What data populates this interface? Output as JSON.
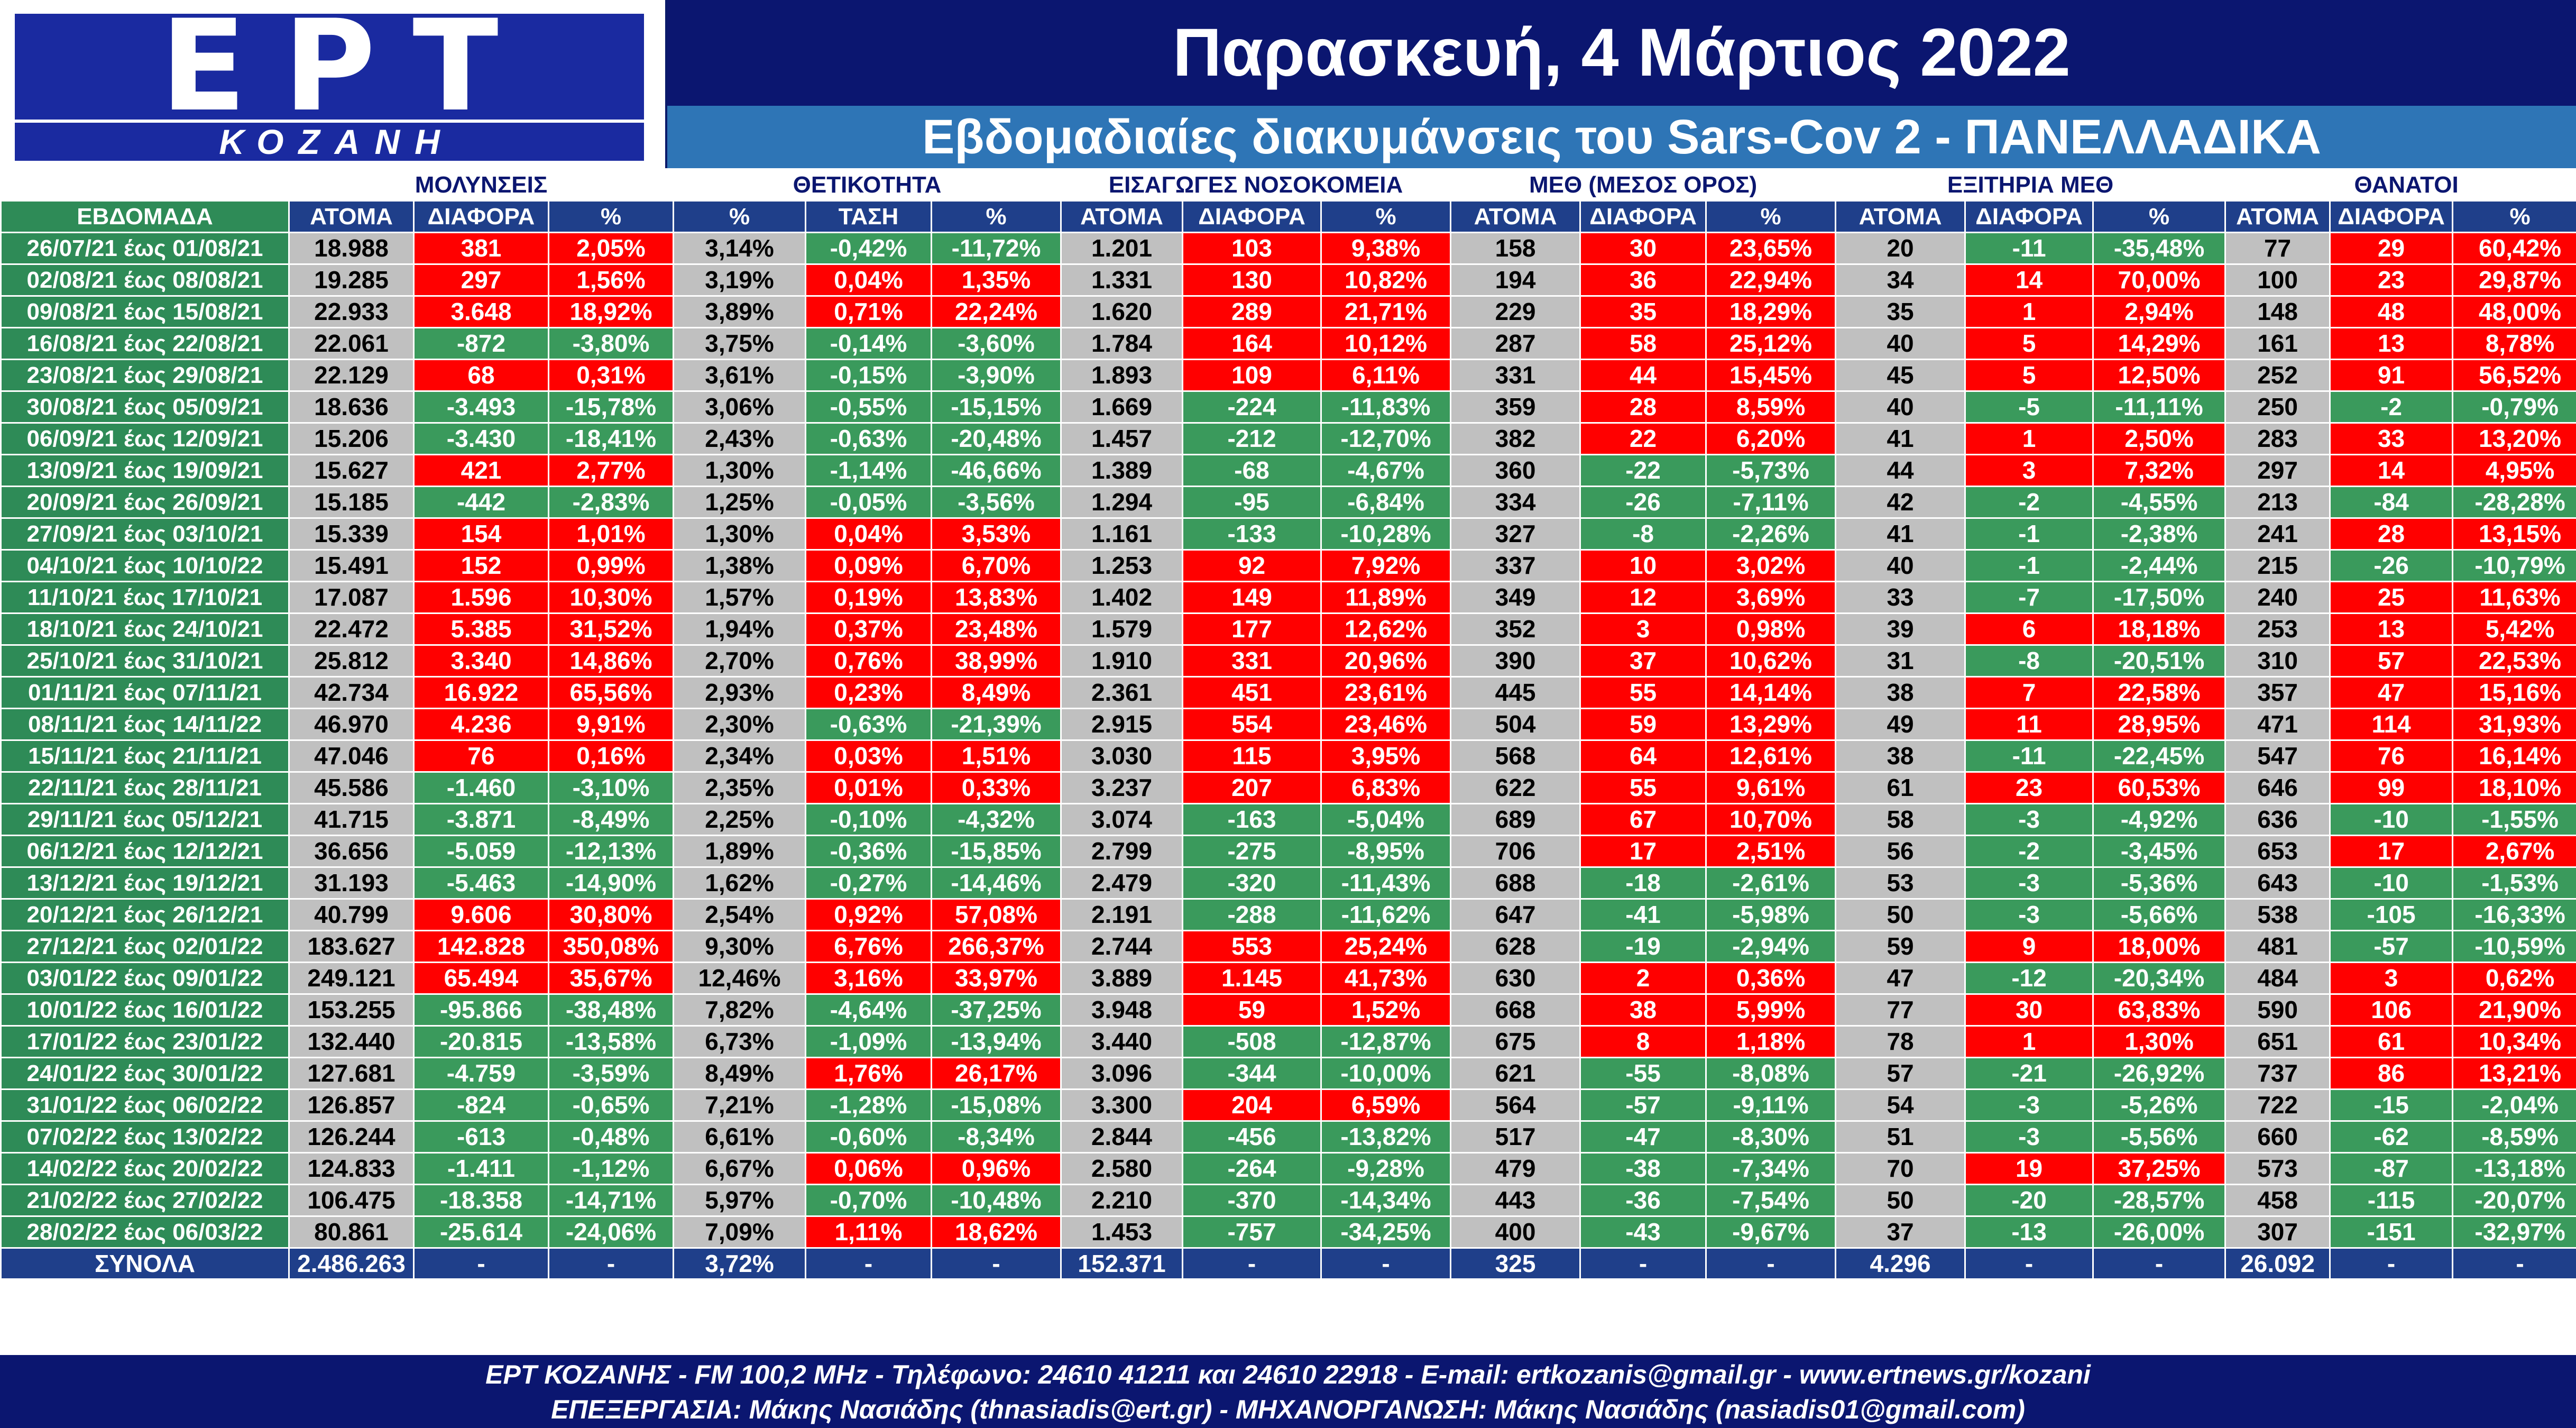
{
  "header": {
    "logo_main": "ΕΡΤ",
    "logo_city": "ΚΟΖΑΝΗ",
    "date_title": "Παρασκευή, 4 Μάρτιος 2022",
    "subtitle": "Εβδομαδιαίες διακυμάνσεις του Sars-Cov 2 - ΠΑΝΕΛΛΑΔΙΚΑ"
  },
  "colors": {
    "increase": "#ff0000",
    "decrease": "#3a9a5c",
    "neutral": "#c0c0c0",
    "header_navy": "#0b1670",
    "header_blue": "#2e75b6"
  },
  "chart_data": {
    "type": "table",
    "groups": [
      {
        "label": "ΜΟΛΥΝΣΕΙΣ",
        "columns": [
          "ΑΤΟΜΑ",
          "ΔΙΑΦΟΡΑ",
          "%"
        ]
      },
      {
        "label": "ΘΕΤΙΚΟΤΗΤΑ",
        "columns": [
          "%",
          "ΤΑΣΗ",
          "%"
        ]
      },
      {
        "label": "ΕΙΣΑΓΩΓΕΣ ΝΟΣΟΚΟΜΕΙΑ",
        "columns": [
          "ΑΤΟΜΑ",
          "ΔΙΑΦΟΡΑ",
          "%"
        ]
      },
      {
        "label": "ΜΕΘ (ΜΕΣΟΣ ΟΡΟΣ)",
        "columns": [
          "ΑΤΟΜΑ",
          "ΔΙΑΦΟΡΑ",
          "%"
        ]
      },
      {
        "label": "ΕΞΙΤΗΡΙΑ ΜΕΘ",
        "columns": [
          "ΑΤΟΜΑ",
          "ΔΙΑΦΟΡΑ",
          "%"
        ]
      },
      {
        "label": "ΘΑΝΑΤΟΙ",
        "columns": [
          "ΑΤΟΜΑ",
          "ΔΙΑΦΟΡΑ",
          "%"
        ]
      }
    ],
    "week_header": "ΕΒΔΟΜΑΔΑ",
    "rows": [
      [
        "26/07/21 έως 01/08/21",
        "18.988",
        "381",
        "2,05%",
        "3,14%",
        "-0,42%",
        "-11,72%",
        "1.201",
        "103",
        "9,38%",
        "158",
        "30",
        "23,65%",
        "20",
        "-11",
        "-35,48%",
        "77",
        "29",
        "60,42%"
      ],
      [
        "02/08/21 έως 08/08/21",
        "19.285",
        "297",
        "1,56%",
        "3,19%",
        "0,04%",
        "1,35%",
        "1.331",
        "130",
        "10,82%",
        "194",
        "36",
        "22,94%",
        "34",
        "14",
        "70,00%",
        "100",
        "23",
        "29,87%"
      ],
      [
        "09/08/21 έως 15/08/21",
        "22.933",
        "3.648",
        "18,92%",
        "3,89%",
        "0,71%",
        "22,24%",
        "1.620",
        "289",
        "21,71%",
        "229",
        "35",
        "18,29%",
        "35",
        "1",
        "2,94%",
        "148",
        "48",
        "48,00%"
      ],
      [
        "16/08/21 έως 22/08/21",
        "22.061",
        "-872",
        "-3,80%",
        "3,75%",
        "-0,14%",
        "-3,60%",
        "1.784",
        "164",
        "10,12%",
        "287",
        "58",
        "25,12%",
        "40",
        "5",
        "14,29%",
        "161",
        "13",
        "8,78%"
      ],
      [
        "23/08/21 έως 29/08/21",
        "22.129",
        "68",
        "0,31%",
        "3,61%",
        "-0,15%",
        "-3,90%",
        "1.893",
        "109",
        "6,11%",
        "331",
        "44",
        "15,45%",
        "45",
        "5",
        "12,50%",
        "252",
        "91",
        "56,52%"
      ],
      [
        "30/08/21 έως 05/09/21",
        "18.636",
        "-3.493",
        "-15,78%",
        "3,06%",
        "-0,55%",
        "-15,15%",
        "1.669",
        "-224",
        "-11,83%",
        "359",
        "28",
        "8,59%",
        "40",
        "-5",
        "-11,11%",
        "250",
        "-2",
        "-0,79%"
      ],
      [
        "06/09/21 έως 12/09/21",
        "15.206",
        "-3.430",
        "-18,41%",
        "2,43%",
        "-0,63%",
        "-20,48%",
        "1.457",
        "-212",
        "-12,70%",
        "382",
        "22",
        "6,20%",
        "41",
        "1",
        "2,50%",
        "283",
        "33",
        "13,20%"
      ],
      [
        "13/09/21 έως 19/09/21",
        "15.627",
        "421",
        "2,77%",
        "1,30%",
        "-1,14%",
        "-46,66%",
        "1.389",
        "-68",
        "-4,67%",
        "360",
        "-22",
        "-5,73%",
        "44",
        "3",
        "7,32%",
        "297",
        "14",
        "4,95%"
      ],
      [
        "20/09/21 έως 26/09/21",
        "15.185",
        "-442",
        "-2,83%",
        "1,25%",
        "-0,05%",
        "-3,56%",
        "1.294",
        "-95",
        "-6,84%",
        "334",
        "-26",
        "-7,11%",
        "42",
        "-2",
        "-4,55%",
        "213",
        "-84",
        "-28,28%"
      ],
      [
        "27/09/21 έως 03/10/21",
        "15.339",
        "154",
        "1,01%",
        "1,30%",
        "0,04%",
        "3,53%",
        "1.161",
        "-133",
        "-10,28%",
        "327",
        "-8",
        "-2,26%",
        "41",
        "-1",
        "-2,38%",
        "241",
        "28",
        "13,15%"
      ],
      [
        "04/10/21 έως 10/10/22",
        "15.491",
        "152",
        "0,99%",
        "1,38%",
        "0,09%",
        "6,70%",
        "1.253",
        "92",
        "7,92%",
        "337",
        "10",
        "3,02%",
        "40",
        "-1",
        "-2,44%",
        "215",
        "-26",
        "-10,79%"
      ],
      [
        "11/10/21 έως 17/10/21",
        "17.087",
        "1.596",
        "10,30%",
        "1,57%",
        "0,19%",
        "13,83%",
        "1.402",
        "149",
        "11,89%",
        "349",
        "12",
        "3,69%",
        "33",
        "-7",
        "-17,50%",
        "240",
        "25",
        "11,63%"
      ],
      [
        "18/10/21 έως 24/10/21",
        "22.472",
        "5.385",
        "31,52%",
        "1,94%",
        "0,37%",
        "23,48%",
        "1.579",
        "177",
        "12,62%",
        "352",
        "3",
        "0,98%",
        "39",
        "6",
        "18,18%",
        "253",
        "13",
        "5,42%"
      ],
      [
        "25/10/21 έως 31/10/21",
        "25.812",
        "3.340",
        "14,86%",
        "2,70%",
        "0,76%",
        "38,99%",
        "1.910",
        "331",
        "20,96%",
        "390",
        "37",
        "10,62%",
        "31",
        "-8",
        "-20,51%",
        "310",
        "57",
        "22,53%"
      ],
      [
        "01/11/21 έως 07/11/21",
        "42.734",
        "16.922",
        "65,56%",
        "2,93%",
        "0,23%",
        "8,49%",
        "2.361",
        "451",
        "23,61%",
        "445",
        "55",
        "14,14%",
        "38",
        "7",
        "22,58%",
        "357",
        "47",
        "15,16%"
      ],
      [
        "08/11/21 έως 14/11/22",
        "46.970",
        "4.236",
        "9,91%",
        "2,30%",
        "-0,63%",
        "-21,39%",
        "2.915",
        "554",
        "23,46%",
        "504",
        "59",
        "13,29%",
        "49",
        "11",
        "28,95%",
        "471",
        "114",
        "31,93%"
      ],
      [
        "15/11/21 έως 21/11/21",
        "47.046",
        "76",
        "0,16%",
        "2,34%",
        "0,03%",
        "1,51%",
        "3.030",
        "115",
        "3,95%",
        "568",
        "64",
        "12,61%",
        "38",
        "-11",
        "-22,45%",
        "547",
        "76",
        "16,14%"
      ],
      [
        "22/11/21 έως 28/11/21",
        "45.586",
        "-1.460",
        "-3,10%",
        "2,35%",
        "0,01%",
        "0,33%",
        "3.237",
        "207",
        "6,83%",
        "622",
        "55",
        "9,61%",
        "61",
        "23",
        "60,53%",
        "646",
        "99",
        "18,10%"
      ],
      [
        "29/11/21 έως 05/12/21",
        "41.715",
        "-3.871",
        "-8,49%",
        "2,25%",
        "-0,10%",
        "-4,32%",
        "3.074",
        "-163",
        "-5,04%",
        "689",
        "67",
        "10,70%",
        "58",
        "-3",
        "-4,92%",
        "636",
        "-10",
        "-1,55%"
      ],
      [
        "06/12/21 έως 12/12/21",
        "36.656",
        "-5.059",
        "-12,13%",
        "1,89%",
        "-0,36%",
        "-15,85%",
        "2.799",
        "-275",
        "-8,95%",
        "706",
        "17",
        "2,51%",
        "56",
        "-2",
        "-3,45%",
        "653",
        "17",
        "2,67%"
      ],
      [
        "13/12/21 έως 19/12/21",
        "31.193",
        "-5.463",
        "-14,90%",
        "1,62%",
        "-0,27%",
        "-14,46%",
        "2.479",
        "-320",
        "-11,43%",
        "688",
        "-18",
        "-2,61%",
        "53",
        "-3",
        "-5,36%",
        "643",
        "-10",
        "-1,53%"
      ],
      [
        "20/12/21 έως 26/12/21",
        "40.799",
        "9.606",
        "30,80%",
        "2,54%",
        "0,92%",
        "57,08%",
        "2.191",
        "-288",
        "-11,62%",
        "647",
        "-41",
        "-5,98%",
        "50",
        "-3",
        "-5,66%",
        "538",
        "-105",
        "-16,33%"
      ],
      [
        "27/12/21 έως 02/01/22",
        "183.627",
        "142.828",
        "350,08%",
        "9,30%",
        "6,76%",
        "266,37%",
        "2.744",
        "553",
        "25,24%",
        "628",
        "-19",
        "-2,94%",
        "59",
        "9",
        "18,00%",
        "481",
        "-57",
        "-10,59%"
      ],
      [
        "03/01/22 έως 09/01/22",
        "249.121",
        "65.494",
        "35,67%",
        "12,46%",
        "3,16%",
        "33,97%",
        "3.889",
        "1.145",
        "41,73%",
        "630",
        "2",
        "0,36%",
        "47",
        "-12",
        "-20,34%",
        "484",
        "3",
        "0,62%"
      ],
      [
        "10/01/22 έως 16/01/22",
        "153.255",
        "-95.866",
        "-38,48%",
        "7,82%",
        "-4,64%",
        "-37,25%",
        "3.948",
        "59",
        "1,52%",
        "668",
        "38",
        "5,99%",
        "77",
        "30",
        "63,83%",
        "590",
        "106",
        "21,90%"
      ],
      [
        "17/01/22 έως 23/01/22",
        "132.440",
        "-20.815",
        "-13,58%",
        "6,73%",
        "-1,09%",
        "-13,94%",
        "3.440",
        "-508",
        "-12,87%",
        "675",
        "8",
        "1,18%",
        "78",
        "1",
        "1,30%",
        "651",
        "61",
        "10,34%"
      ],
      [
        "24/01/22 έως 30/01/22",
        "127.681",
        "-4.759",
        "-3,59%",
        "8,49%",
        "1,76%",
        "26,17%",
        "3.096",
        "-344",
        "-10,00%",
        "621",
        "-55",
        "-8,08%",
        "57",
        "-21",
        "-26,92%",
        "737",
        "86",
        "13,21%"
      ],
      [
        "31/01/22 έως 06/02/22",
        "126.857",
        "-824",
        "-0,65%",
        "7,21%",
        "-1,28%",
        "-15,08%",
        "3.300",
        "204",
        "6,59%",
        "564",
        "-57",
        "-9,11%",
        "54",
        "-3",
        "-5,26%",
        "722",
        "-15",
        "-2,04%"
      ],
      [
        "07/02/22 έως 13/02/22",
        "126.244",
        "-613",
        "-0,48%",
        "6,61%",
        "-0,60%",
        "-8,34%",
        "2.844",
        "-456",
        "-13,82%",
        "517",
        "-47",
        "-8,30%",
        "51",
        "-3",
        "-5,56%",
        "660",
        "-62",
        "-8,59%"
      ],
      [
        "14/02/22 έως 20/02/22",
        "124.833",
        "-1.411",
        "-1,12%",
        "6,67%",
        "0,06%",
        "0,96%",
        "2.580",
        "-264",
        "-9,28%",
        "479",
        "-38",
        "-7,34%",
        "70",
        "19",
        "37,25%",
        "573",
        "-87",
        "-13,18%"
      ],
      [
        "21/02/22 έως 27/02/22",
        "106.475",
        "-18.358",
        "-14,71%",
        "5,97%",
        "-0,70%",
        "-10,48%",
        "2.210",
        "-370",
        "-14,34%",
        "443",
        "-36",
        "-7,54%",
        "50",
        "-20",
        "-28,57%",
        "458",
        "-115",
        "-20,07%"
      ],
      [
        "28/02/22 έως 06/03/22",
        "80.861",
        "-25.614",
        "-24,06%",
        "7,09%",
        "1,11%",
        "18,62%",
        "1.453",
        "-757",
        "-34,25%",
        "400",
        "-43",
        "-9,67%",
        "37",
        "-13",
        "-26,00%",
        "307",
        "-151",
        "-32,97%"
      ]
    ],
    "totals": [
      "ΣΥΝΟΛΑ",
      "2.486.263",
      "-",
      "-",
      "3,72%",
      "-",
      "-",
      "152.371",
      "-",
      "-",
      "325",
      "-",
      "-",
      "4.296",
      "-",
      "-",
      "26.092",
      "-",
      "-"
    ]
  },
  "footer": {
    "line1": "ΕΡΤ ΚΟΖΑΝΗΣ - FM 100,2 MHz - Τηλέφωνο:  24610 41211 και 24610 22918 - E-mail: ertkozanis@gmail.gr - www.ertnews.gr/kozani",
    "line2": "ΕΠΕΞΕΡΓΑΣΙΑ: Μάκης Νασιάδης (thnasiadis@ert.gr) - ΜΗΧΑΝΟΡΓΑΝΩΣΗ: Μάκης Νασιάδης (nasiadis01@gmail.com)"
  }
}
